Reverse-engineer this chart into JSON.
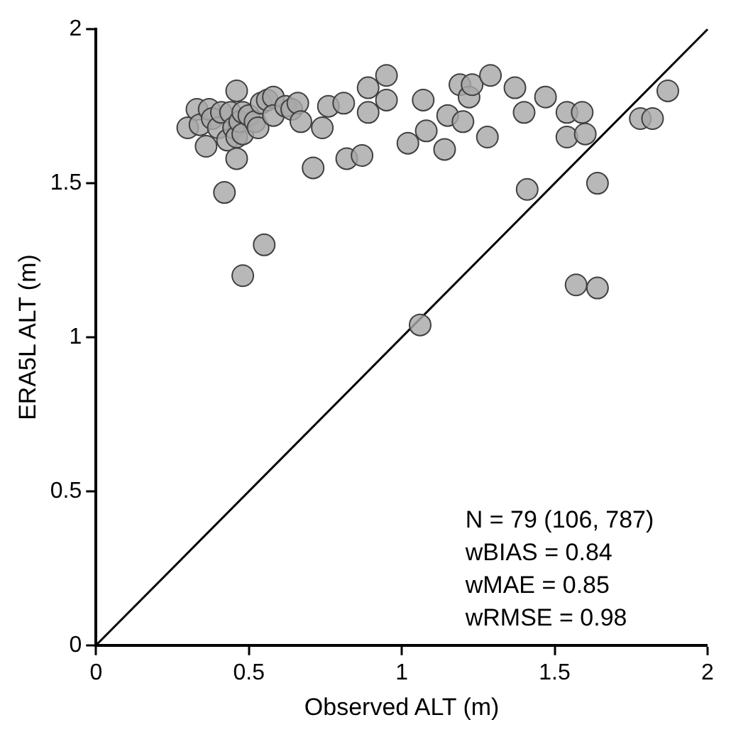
{
  "chart_data": {
    "type": "scatter",
    "xlabel": "Observed ALT (m)",
    "ylabel": "ERA5L ALT (m)",
    "xlim": [
      0,
      2
    ],
    "ylim": [
      0,
      2
    ],
    "xticks": [
      0,
      0.5,
      1,
      1.5,
      2
    ],
    "yticks": [
      0,
      0.5,
      1,
      1.5,
      2
    ],
    "grid": false,
    "legend": false,
    "marker": "circle",
    "series": [
      {
        "type": "scatter",
        "color": "#a8a8a8",
        "x": [
          0.3,
          0.33,
          0.34,
          0.36,
          0.37,
          0.38,
          0.4,
          0.41,
          0.42,
          0.43,
          0.44,
          0.45,
          0.46,
          0.46,
          0.46,
          0.47,
          0.48,
          0.48,
          0.5,
          0.52,
          0.53,
          0.54,
          0.56,
          0.58,
          0.58,
          0.62,
          0.64,
          0.66,
          0.67,
          0.71,
          0.74,
          0.76,
          0.81,
          0.82,
          0.87,
          0.89,
          0.89,
          0.95,
          0.95,
          1.02,
          1.07,
          1.08,
          1.06,
          1.14,
          1.15,
          1.19,
          1.2,
          1.22,
          1.23,
          1.28,
          1.29,
          1.37,
          1.4,
          1.41,
          1.47,
          1.54,
          1.54,
          1.57,
          1.59,
          1.6,
          1.64,
          1.64,
          1.78,
          1.82,
          1.87,
          0.48,
          0.55
        ],
        "values": [
          1.68,
          1.74,
          1.69,
          1.62,
          1.74,
          1.71,
          1.68,
          1.73,
          1.47,
          1.64,
          1.73,
          1.68,
          1.8,
          1.58,
          1.65,
          1.7,
          1.73,
          1.66,
          1.72,
          1.7,
          1.68,
          1.76,
          1.77,
          1.78,
          1.72,
          1.75,
          1.74,
          1.76,
          1.7,
          1.55,
          1.68,
          1.75,
          1.76,
          1.58,
          1.59,
          1.81,
          1.73,
          1.85,
          1.77,
          1.63,
          1.77,
          1.67,
          1.04,
          1.61,
          1.72,
          1.82,
          1.7,
          1.78,
          1.82,
          1.65,
          1.85,
          1.81,
          1.73,
          1.48,
          1.78,
          1.73,
          1.65,
          1.17,
          1.73,
          1.66,
          1.5,
          1.16,
          1.71,
          1.71,
          1.8,
          1.2,
          1.3
        ]
      },
      {
        "type": "line",
        "color": "#000000",
        "x": [
          0,
          2
        ],
        "values": [
          0,
          2
        ],
        "line_style": "solid",
        "marker": "none"
      }
    ],
    "annotations": [
      "N = 79 (106, 787)",
      "wBIAS = 0.84",
      "wMAE = 0.85",
      "wRMSE = 0.98"
    ]
  }
}
